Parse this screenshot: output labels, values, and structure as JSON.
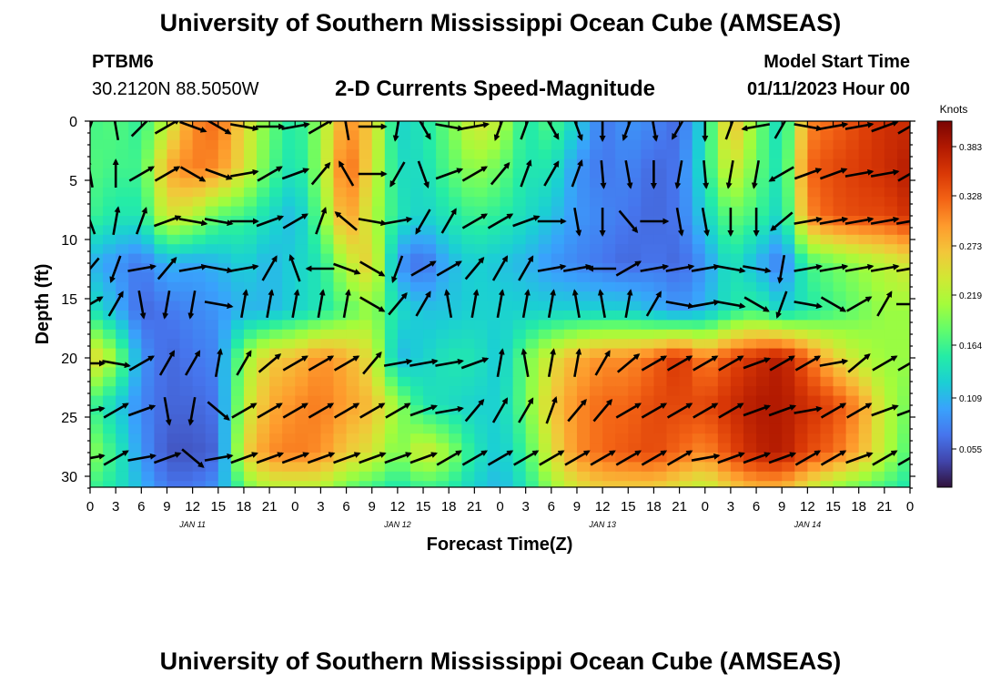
{
  "header": {
    "title": "University of Southern Mississippi Ocean Cube (AMSEAS)",
    "station_id": "PTBM6",
    "coords": "30.2120N  88.5050W",
    "plot_title": "2-D Currents Speed-Magnitude",
    "model_start_label": "Model Start Time",
    "model_start_value": "01/11/2023 Hour 00"
  },
  "footer": {
    "title": "University of Southern Mississippi Ocean Cube (AMSEAS)"
  },
  "chart_data": {
    "type": "heatmap",
    "xlabel": "Forecast Time(Z)",
    "ylabel": "Depth (ft)",
    "x_tick_labels": [
      "0",
      "3",
      "6",
      "9",
      "12",
      "15",
      "18",
      "21",
      "0",
      "3",
      "6",
      "9",
      "12",
      "15",
      "18",
      "21",
      "0",
      "3",
      "6",
      "9",
      "12",
      "15",
      "18",
      "21",
      "0",
      "3",
      "6",
      "9",
      "12",
      "15",
      "18",
      "21",
      "0"
    ],
    "date_labels": [
      "JAN 11",
      "JAN 12",
      "JAN 13",
      "JAN 14"
    ],
    "y_ticks": [
      0,
      5,
      10,
      15,
      20,
      25,
      30
    ],
    "ylim": [
      0,
      31
    ],
    "y_inverted": true,
    "xlim_hours": [
      0,
      96
    ],
    "colorbar": {
      "unit": "Knots",
      "ticks": [
        "0.383",
        "0.328",
        "0.273",
        "0.219",
        "0.164",
        "0.109",
        "0.055"
      ],
      "colors": [
        "#30123b",
        "#4145ab",
        "#4675ed",
        "#39a2fc",
        "#1bcfd4",
        "#24eca6",
        "#61fc6c",
        "#a4fc3b",
        "#d1e834",
        "#f3c63a",
        "#fe9b2d",
        "#f36315",
        "#d93806",
        "#b11901",
        "#7a0403"
      ]
    },
    "speed_grid_hours": [
      0,
      3,
      6,
      9,
      12,
      15,
      18,
      21,
      24,
      27,
      30,
      33,
      36,
      39,
      42,
      45,
      48,
      51,
      54,
      57,
      60,
      63,
      66,
      69,
      72,
      75,
      78,
      81,
      84,
      87,
      90,
      93,
      96
    ],
    "speed_grid_depths": [
      0,
      4,
      8,
      12,
      16,
      20,
      24,
      28,
      31
    ],
    "speed_knots": [
      [
        0.16,
        0.17,
        0.15,
        0.22,
        0.3,
        0.32,
        0.25,
        0.18,
        0.14,
        0.2,
        0.3,
        0.26,
        0.12,
        0.14,
        0.18,
        0.24,
        0.22,
        0.14,
        0.17,
        0.12,
        0.06,
        0.08,
        0.07,
        0.05,
        0.13,
        0.28,
        0.19,
        0.12,
        0.3,
        0.32,
        0.34,
        0.36,
        0.36
      ],
      [
        0.17,
        0.16,
        0.16,
        0.28,
        0.31,
        0.3,
        0.24,
        0.17,
        0.13,
        0.2,
        0.33,
        0.24,
        0.13,
        0.13,
        0.17,
        0.2,
        0.18,
        0.14,
        0.14,
        0.08,
        0.06,
        0.07,
        0.05,
        0.06,
        0.14,
        0.24,
        0.18,
        0.13,
        0.32,
        0.34,
        0.35,
        0.36,
        0.38
      ],
      [
        0.16,
        0.14,
        0.14,
        0.24,
        0.22,
        0.17,
        0.16,
        0.13,
        0.1,
        0.18,
        0.3,
        0.22,
        0.14,
        0.12,
        0.14,
        0.16,
        0.15,
        0.13,
        0.11,
        0.08,
        0.07,
        0.06,
        0.05,
        0.06,
        0.12,
        0.18,
        0.16,
        0.12,
        0.3,
        0.33,
        0.34,
        0.34,
        0.36
      ],
      [
        0.1,
        0.08,
        0.06,
        0.1,
        0.09,
        0.1,
        0.12,
        0.1,
        0.12,
        0.14,
        0.22,
        0.26,
        0.08,
        0.05,
        0.1,
        0.12,
        0.11,
        0.1,
        0.08,
        0.07,
        0.06,
        0.05,
        0.06,
        0.05,
        0.08,
        0.14,
        0.1,
        0.06,
        0.16,
        0.18,
        0.2,
        0.22,
        0.24
      ],
      [
        0.14,
        0.1,
        0.05,
        0.06,
        0.07,
        0.08,
        0.1,
        0.1,
        0.12,
        0.14,
        0.17,
        0.2,
        0.13,
        0.11,
        0.11,
        0.12,
        0.12,
        0.12,
        0.12,
        0.12,
        0.12,
        0.12,
        0.1,
        0.08,
        0.1,
        0.14,
        0.16,
        0.12,
        0.14,
        0.16,
        0.18,
        0.2,
        0.2
      ],
      [
        0.26,
        0.2,
        0.08,
        0.05,
        0.06,
        0.07,
        0.2,
        0.26,
        0.27,
        0.3,
        0.28,
        0.24,
        0.1,
        0.12,
        0.14,
        0.14,
        0.11,
        0.18,
        0.24,
        0.28,
        0.3,
        0.3,
        0.32,
        0.36,
        0.3,
        0.34,
        0.36,
        0.38,
        0.32,
        0.26,
        0.22,
        0.2,
        0.2
      ],
      [
        0.16,
        0.12,
        0.07,
        0.05,
        0.05,
        0.06,
        0.22,
        0.28,
        0.3,
        0.31,
        0.29,
        0.27,
        0.2,
        0.14,
        0.13,
        0.12,
        0.12,
        0.18,
        0.26,
        0.3,
        0.32,
        0.32,
        0.34,
        0.34,
        0.34,
        0.36,
        0.38,
        0.38,
        0.36,
        0.34,
        0.3,
        0.22,
        0.18
      ],
      [
        0.2,
        0.15,
        0.08,
        0.04,
        0.04,
        0.05,
        0.25,
        0.3,
        0.31,
        0.3,
        0.26,
        0.24,
        0.18,
        0.24,
        0.2,
        0.14,
        0.11,
        0.16,
        0.24,
        0.3,
        0.32,
        0.33,
        0.34,
        0.32,
        0.3,
        0.34,
        0.37,
        0.38,
        0.34,
        0.32,
        0.28,
        0.22,
        0.16
      ],
      [
        0.16,
        0.14,
        0.1,
        0.06,
        0.06,
        0.08,
        0.18,
        0.22,
        0.22,
        0.22,
        0.18,
        0.16,
        0.14,
        0.16,
        0.15,
        0.12,
        0.1,
        0.14,
        0.2,
        0.24,
        0.26,
        0.26,
        0.26,
        0.24,
        0.22,
        0.26,
        0.28,
        0.28,
        0.24,
        0.2,
        0.18,
        0.16,
        0.14
      ]
    ],
    "vector_hours": [
      0,
      3,
      6,
      9,
      12,
      15,
      18,
      21,
      24,
      27,
      30,
      33,
      36,
      39,
      42,
      45,
      48,
      51,
      54,
      57,
      60,
      63,
      66,
      69,
      72,
      75,
      78,
      81,
      84,
      87,
      90,
      93,
      96
    ],
    "vector_depths": [
      0,
      4,
      8,
      12,
      15,
      20,
      24,
      28
    ],
    "vector_direction_deg": [
      [
        20,
        350,
        45,
        60,
        110,
        120,
        100,
        90,
        80,
        60,
        350,
        90,
        190,
        150,
        100,
        80,
        200,
        20,
        150,
        160,
        180,
        200,
        170,
        210,
        180,
        20,
        260,
        30,
        100,
        80,
        80,
        70,
        60
      ],
      [
        350,
        0,
        60,
        60,
        120,
        110,
        80,
        60,
        70,
        40,
        330,
        90,
        210,
        160,
        70,
        60,
        40,
        20,
        30,
        20,
        175,
        170,
        180,
        190,
        175,
        190,
        190,
        240,
        70,
        70,
        80,
        80,
        60
      ],
      [
        340,
        10,
        20,
        70,
        100,
        100,
        90,
        70,
        60,
        20,
        310,
        100,
        80,
        210,
        30,
        60,
        60,
        70,
        90,
        170,
        180,
        140,
        90,
        170,
        170,
        180,
        180,
        230,
        80,
        80,
        80,
        80,
        80
      ],
      [
        220,
        200,
        80,
        40,
        80,
        100,
        80,
        30,
        340,
        270,
        110,
        120,
        200,
        60,
        60,
        40,
        30,
        30,
        80,
        80,
        270,
        60,
        80,
        80,
        80,
        100,
        100,
        190,
        80,
        80,
        80,
        80,
        80
      ],
      [
        60,
        30,
        170,
        190,
        190,
        100,
        10,
        10,
        10,
        10,
        10,
        120,
        40,
        30,
        350,
        10,
        10,
        10,
        10,
        350,
        350,
        10,
        30,
        100,
        80,
        100,
        120,
        200,
        100,
        120,
        60,
        30,
        90
      ],
      [
        90,
        100,
        60,
        30,
        30,
        10,
        30,
        50,
        60,
        60,
        60,
        40,
        80,
        80,
        80,
        70,
        10,
        350,
        10,
        10,
        30,
        50,
        60,
        60,
        60,
        60,
        70,
        60,
        60,
        80,
        50,
        60,
        60
      ],
      [
        80,
        60,
        70,
        170,
        190,
        130,
        60,
        60,
        60,
        60,
        60,
        60,
        60,
        70,
        80,
        40,
        30,
        30,
        20,
        40,
        40,
        60,
        60,
        60,
        60,
        60,
        70,
        70,
        80,
        60,
        60,
        70,
        70
      ],
      [
        80,
        60,
        80,
        70,
        130,
        80,
        70,
        70,
        70,
        70,
        70,
        70,
        70,
        70,
        60,
        60,
        60,
        60,
        60,
        60,
        60,
        60,
        60,
        60,
        80,
        70,
        70,
        70,
        60,
        60,
        70,
        60,
        60
      ]
    ]
  }
}
